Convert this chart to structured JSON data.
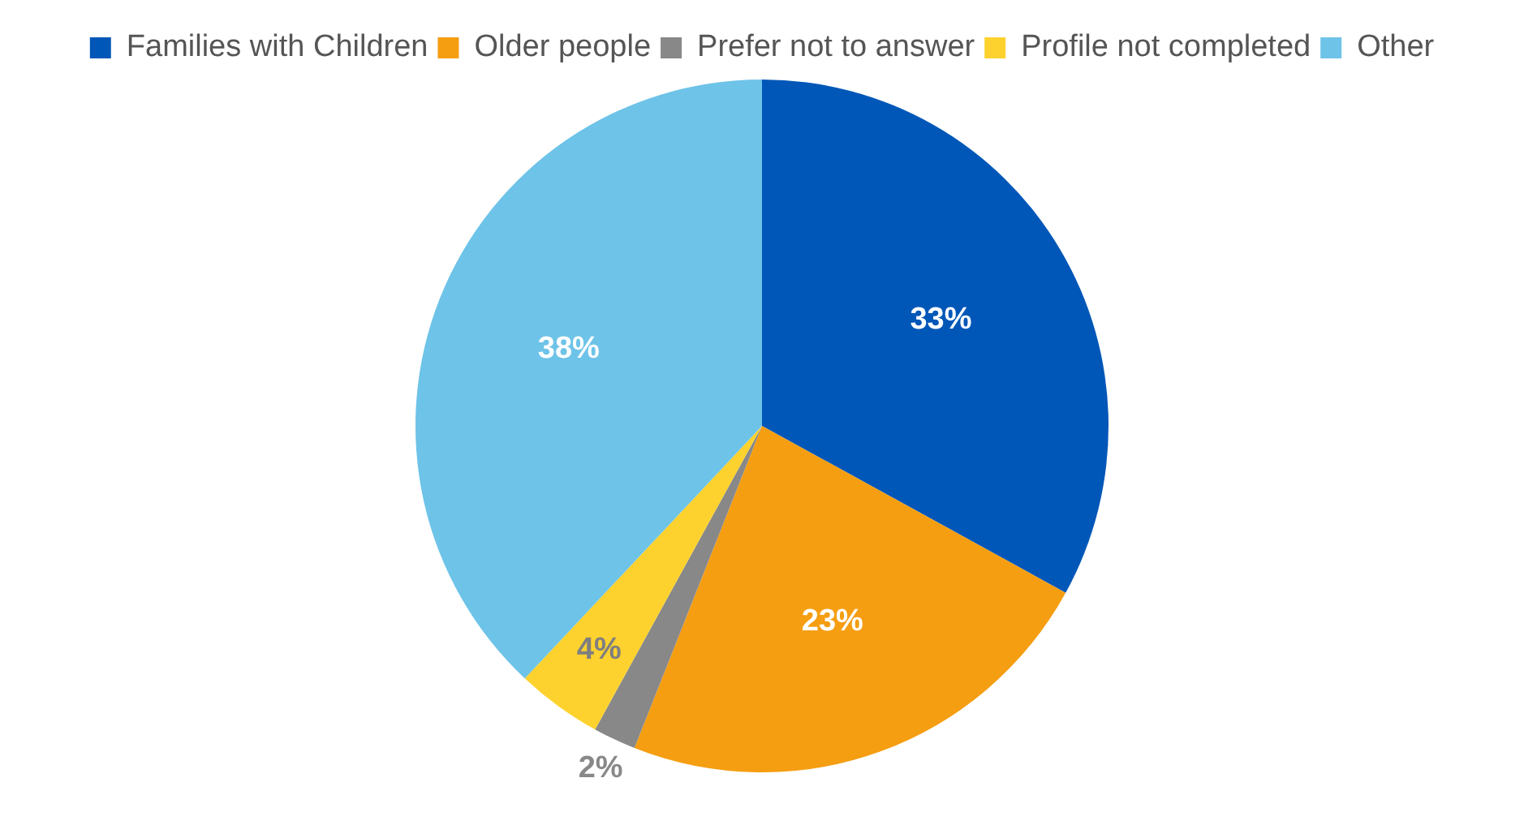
{
  "chart_data": {
    "type": "pie",
    "categories": [
      "Families with Children",
      "Older people",
      "Prefer not to answer",
      "Profile not completed",
      "Other"
    ],
    "values": [
      33,
      23,
      2,
      4,
      38
    ],
    "colors": [
      "#0057b8",
      "#f59e12",
      "#888888",
      "#fdd22e",
      "#6ec3e8"
    ],
    "value_labels": [
      "33%",
      "23%",
      "2%",
      "4%",
      "38%"
    ],
    "legend": "top"
  }
}
